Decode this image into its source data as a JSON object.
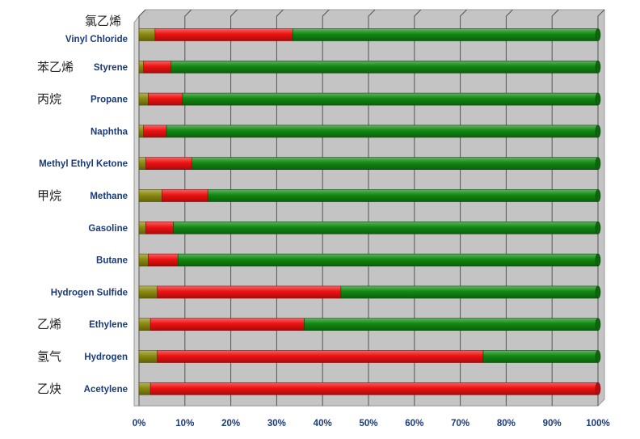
{
  "chart_data": {
    "type": "bar",
    "orientation": "horizontal",
    "stacked": "percent",
    "categories": [
      {
        "en": "Vinyl Chloride",
        "zh": "氯乙烯"
      },
      {
        "en": "Styrene",
        "zh": "苯乙烯"
      },
      {
        "en": "Propane",
        "zh": "丙烷"
      },
      {
        "en": "Naphtha",
        "zh": ""
      },
      {
        "en": "Methyl Ethyl Ketone",
        "zh": ""
      },
      {
        "en": "Methane",
        "zh": "甲烷"
      },
      {
        "en": "Gasoline",
        "zh": ""
      },
      {
        "en": "Butane",
        "zh": ""
      },
      {
        "en": "Hydrogen Sulfide",
        "zh": ""
      },
      {
        "en": "Ethylene",
        "zh": "乙烯"
      },
      {
        "en": "Hydrogen",
        "zh": "氢气"
      },
      {
        "en": "Acetylene",
        "zh": "乙炔"
      }
    ],
    "series": [
      {
        "color": "#8a8a10",
        "values": [
          3.5,
          1.0,
          2.0,
          1.0,
          1.5,
          5.0,
          1.5,
          2.0,
          4.0,
          2.5,
          4.0,
          2.5
        ]
      },
      {
        "color": "#ee1111",
        "values": [
          30.0,
          6.0,
          7.5,
          5.0,
          10.0,
          10.0,
          6.0,
          6.5,
          40.0,
          33.5,
          71.0,
          97.5
        ]
      },
      {
        "color": "#118811",
        "values": [
          66.5,
          93.0,
          90.5,
          94.0,
          88.5,
          85.0,
          92.5,
          91.5,
          56.0,
          64.0,
          25.0,
          0.0
        ]
      }
    ],
    "xticks": [
      "0%",
      "10%",
      "20%",
      "30%",
      "40%",
      "50%",
      "60%",
      "70%",
      "80%",
      "90%",
      "100%"
    ],
    "xlim": [
      0,
      100
    ],
    "grid": true,
    "plot_background": "#c4c4c4",
    "grid_color": "#555555"
  }
}
